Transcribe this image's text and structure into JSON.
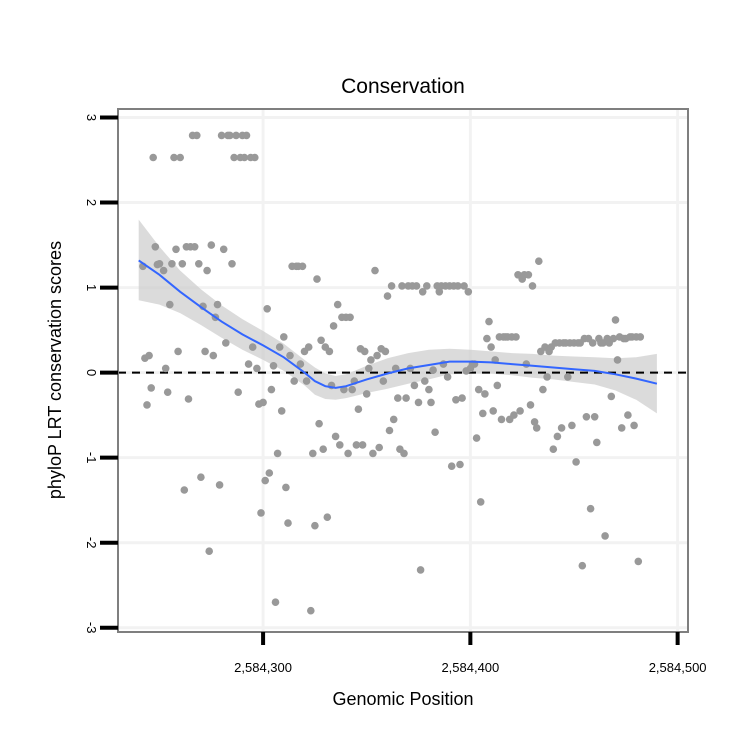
{
  "chart_data": {
    "type": "scatter",
    "title": "Conservation",
    "xlabel": "Genomic Position",
    "ylabel": "phyloP LRT conservation scores",
    "xlim": [
      2584230,
      2584505
    ],
    "ylim": [
      -3.05,
      3.1
    ],
    "x_ticks": [
      2584300,
      2584400,
      2584500
    ],
    "x_tick_labels": [
      "2,584,300",
      "2,584,400",
      "2,584,500"
    ],
    "y_ticks": [
      -3,
      -2,
      -1,
      0,
      1,
      2,
      3
    ],
    "y_tick_labels": [
      "-3",
      "-2",
      "-1",
      "0",
      "1",
      "2",
      "3"
    ],
    "grid": true,
    "reference_line": {
      "y": 0,
      "style": "dashed"
    },
    "colors": {
      "points": "#999999",
      "smooth": "#3366ff",
      "band": "#c8c8c8",
      "frame": "#7f7f7f",
      "grid": "#f2f2f2"
    },
    "series": [
      {
        "name": "scores",
        "kind": "points",
        "points": [
          [
            2584242,
            1.25
          ],
          [
            2584243,
            0.17
          ],
          [
            2584244,
            -0.38
          ],
          [
            2584245,
            0.2
          ],
          [
            2584246,
            -0.18
          ],
          [
            2584247,
            2.53
          ],
          [
            2584248,
            1.48
          ],
          [
            2584249,
            1.27
          ],
          [
            2584250,
            1.28
          ],
          [
            2584252,
            1.2
          ],
          [
            2584253,
            0.05
          ],
          [
            2584254,
            -0.23
          ],
          [
            2584255,
            0.8
          ],
          [
            2584256,
            1.28
          ],
          [
            2584257,
            2.53
          ],
          [
            2584258,
            1.45
          ],
          [
            2584259,
            0.25
          ],
          [
            2584260,
            2.53
          ],
          [
            2584261,
            1.28
          ],
          [
            2584262,
            -1.38
          ],
          [
            2584263,
            1.48
          ],
          [
            2584264,
            -0.31
          ],
          [
            2584265,
            1.48
          ],
          [
            2584266,
            2.79
          ],
          [
            2584267,
            1.48
          ],
          [
            2584268,
            2.79
          ],
          [
            2584269,
            1.28
          ],
          [
            2584270,
            -1.23
          ],
          [
            2584271,
            0.78
          ],
          [
            2584272,
            0.25
          ],
          [
            2584273,
            1.2
          ],
          [
            2584274,
            -2.1
          ],
          [
            2584275,
            1.5
          ],
          [
            2584276,
            0.2
          ],
          [
            2584277,
            0.65
          ],
          [
            2584278,
            0.8
          ],
          [
            2584279,
            -1.32
          ],
          [
            2584280,
            2.79
          ],
          [
            2584281,
            1.45
          ],
          [
            2584282,
            0.35
          ],
          [
            2584283,
            2.79
          ],
          [
            2584284,
            2.79
          ],
          [
            2584285,
            1.28
          ],
          [
            2584286,
            2.53
          ],
          [
            2584287,
            2.79
          ],
          [
            2584288,
            -0.23
          ],
          [
            2584289,
            2.53
          ],
          [
            2584290,
            2.79
          ],
          [
            2584291,
            2.53
          ],
          [
            2584292,
            2.79
          ],
          [
            2584293,
            0.1
          ],
          [
            2584294,
            2.53
          ],
          [
            2584295,
            0.3
          ],
          [
            2584296,
            2.53
          ],
          [
            2584297,
            0.05
          ],
          [
            2584298,
            -0.37
          ],
          [
            2584299,
            -1.65
          ],
          [
            2584300,
            -0.35
          ],
          [
            2584301,
            -1.27
          ],
          [
            2584302,
            0.75
          ],
          [
            2584303,
            -1.18
          ],
          [
            2584304,
            -0.2
          ],
          [
            2584305,
            0.08
          ],
          [
            2584306,
            -2.7
          ],
          [
            2584307,
            -0.95
          ],
          [
            2584308,
            0.3
          ],
          [
            2584309,
            -0.45
          ],
          [
            2584310,
            0.42
          ],
          [
            2584311,
            -1.35
          ],
          [
            2584312,
            -1.77
          ],
          [
            2584313,
            0.2
          ],
          [
            2584314,
            1.25
          ],
          [
            2584315,
            -0.1
          ],
          [
            2584316,
            1.25
          ],
          [
            2584317,
            1.25
          ],
          [
            2584318,
            0.1
          ],
          [
            2584319,
            1.25
          ],
          [
            2584320,
            0.25
          ],
          [
            2584321,
            -0.1
          ],
          [
            2584322,
            0.3
          ],
          [
            2584323,
            -2.8
          ],
          [
            2584324,
            -0.95
          ],
          [
            2584325,
            -1.8
          ],
          [
            2584326,
            1.1
          ],
          [
            2584327,
            -0.6
          ],
          [
            2584328,
            0.38
          ],
          [
            2584329,
            -0.9
          ],
          [
            2584330,
            0.3
          ],
          [
            2584331,
            -1.7
          ],
          [
            2584332,
            0.25
          ],
          [
            2584333,
            -0.15
          ],
          [
            2584334,
            0.55
          ],
          [
            2584335,
            -0.75
          ],
          [
            2584336,
            0.8
          ],
          [
            2584337,
            -0.85
          ],
          [
            2584338,
            0.65
          ],
          [
            2584339,
            -0.2
          ],
          [
            2584340,
            0.65
          ],
          [
            2584341,
            -0.95
          ],
          [
            2584342,
            0.65
          ],
          [
            2584343,
            -0.2
          ],
          [
            2584344,
            -0.1
          ],
          [
            2584345,
            -0.85
          ],
          [
            2584346,
            -0.43
          ],
          [
            2584347,
            0.28
          ],
          [
            2584348,
            -0.85
          ],
          [
            2584349,
            0.25
          ],
          [
            2584350,
            -0.25
          ],
          [
            2584351,
            0.05
          ],
          [
            2584352,
            0.15
          ],
          [
            2584353,
            -0.95
          ],
          [
            2584354,
            1.2
          ],
          [
            2584355,
            0.2
          ],
          [
            2584356,
            -0.88
          ],
          [
            2584357,
            0.28
          ],
          [
            2584358,
            -0.1
          ],
          [
            2584359,
            0.25
          ],
          [
            2584360,
            0.9
          ],
          [
            2584361,
            -0.68
          ],
          [
            2584362,
            1.02
          ],
          [
            2584363,
            -0.55
          ],
          [
            2584364,
            0.05
          ],
          [
            2584365,
            -0.3
          ],
          [
            2584366,
            -0.9
          ],
          [
            2584367,
            1.02
          ],
          [
            2584368,
            -0.95
          ],
          [
            2584369,
            -0.3
          ],
          [
            2584370,
            1.02
          ],
          [
            2584371,
            0.05
          ],
          [
            2584372,
            1.02
          ],
          [
            2584373,
            -0.15
          ],
          [
            2584374,
            1.02
          ],
          [
            2584375,
            -0.35
          ],
          [
            2584376,
            -2.32
          ],
          [
            2584377,
            0.95
          ],
          [
            2584378,
            -0.1
          ],
          [
            2584379,
            1.02
          ],
          [
            2584380,
            -0.2
          ],
          [
            2584381,
            -0.35
          ],
          [
            2584382,
            0.03
          ],
          [
            2584383,
            -0.7
          ],
          [
            2584384,
            1.02
          ],
          [
            2584385,
            0.95
          ],
          [
            2584386,
            1.02
          ],
          [
            2584387,
            0.1
          ],
          [
            2584388,
            1.02
          ],
          [
            2584389,
            -0.05
          ],
          [
            2584390,
            1.02
          ],
          [
            2584391,
            -1.1
          ],
          [
            2584392,
            1.02
          ],
          [
            2584393,
            -0.32
          ],
          [
            2584394,
            1.02
          ],
          [
            2584395,
            -1.08
          ],
          [
            2584396,
            -0.3
          ],
          [
            2584397,
            1.02
          ],
          [
            2584398,
            0.02
          ],
          [
            2584399,
            0.95
          ],
          [
            2584400,
            0.05
          ],
          [
            2584401,
            0.1
          ],
          [
            2584402,
            0.1
          ],
          [
            2584403,
            -0.77
          ],
          [
            2584404,
            -0.2
          ],
          [
            2584405,
            -1.52
          ],
          [
            2584406,
            -0.48
          ],
          [
            2584407,
            -0.25
          ],
          [
            2584408,
            0.4
          ],
          [
            2584409,
            0.6
          ],
          [
            2584410,
            0.3
          ],
          [
            2584411,
            -0.45
          ],
          [
            2584412,
            0.15
          ],
          [
            2584413,
            -0.15
          ],
          [
            2584414,
            0.42
          ],
          [
            2584415,
            -0.55
          ],
          [
            2584416,
            0.42
          ],
          [
            2584417,
            0.42
          ],
          [
            2584418,
            0.42
          ],
          [
            2584419,
            -0.55
          ],
          [
            2584420,
            0.42
          ],
          [
            2584421,
            -0.5
          ],
          [
            2584422,
            0.42
          ],
          [
            2584423,
            1.15
          ],
          [
            2584424,
            -0.45
          ],
          [
            2584425,
            1.1
          ],
          [
            2584426,
            1.15
          ],
          [
            2584427,
            0.1
          ],
          [
            2584428,
            1.15
          ],
          [
            2584429,
            -0.38
          ],
          [
            2584430,
            1.02
          ],
          [
            2584431,
            -0.58
          ],
          [
            2584432,
            -0.65
          ],
          [
            2584433,
            1.31
          ],
          [
            2584434,
            0.25
          ],
          [
            2584435,
            -0.2
          ],
          [
            2584436,
            0.3
          ],
          [
            2584437,
            -0.05
          ],
          [
            2584438,
            0.25
          ],
          [
            2584439,
            0.3
          ],
          [
            2584440,
            -0.9
          ],
          [
            2584441,
            0.35
          ],
          [
            2584442,
            -0.75
          ],
          [
            2584443,
            0.35
          ],
          [
            2584444,
            -0.65
          ],
          [
            2584445,
            0.35
          ],
          [
            2584446,
            0.35
          ],
          [
            2584447,
            -0.05
          ],
          [
            2584448,
            0.35
          ],
          [
            2584449,
            -0.62
          ],
          [
            2584450,
            0.35
          ],
          [
            2584451,
            -1.05
          ],
          [
            2584452,
            0.35
          ],
          [
            2584453,
            0.35
          ],
          [
            2584454,
            -2.27
          ],
          [
            2584455,
            0.4
          ],
          [
            2584456,
            -0.52
          ],
          [
            2584457,
            0.4
          ],
          [
            2584458,
            -1.6
          ],
          [
            2584459,
            0.35
          ],
          [
            2584460,
            -0.52
          ],
          [
            2584461,
            -0.82
          ],
          [
            2584462,
            0.4
          ],
          [
            2584463,
            0.35
          ],
          [
            2584464,
            0.35
          ],
          [
            2584465,
            -1.92
          ],
          [
            2584466,
            0.4
          ],
          [
            2584467,
            0.35
          ],
          [
            2584468,
            -0.28
          ],
          [
            2584469,
            0.4
          ],
          [
            2584470,
            0.62
          ],
          [
            2584471,
            0.15
          ],
          [
            2584472,
            0.42
          ],
          [
            2584473,
            -0.65
          ],
          [
            2584474,
            0.4
          ],
          [
            2584475,
            0.4
          ],
          [
            2584476,
            -0.5
          ],
          [
            2584477,
            0.42
          ],
          [
            2584478,
            0.42
          ],
          [
            2584479,
            -0.62
          ],
          [
            2584480,
            0.42
          ],
          [
            2584481,
            -2.22
          ],
          [
            2584482,
            0.42
          ]
        ]
      },
      {
        "name": "smooth fit",
        "kind": "line",
        "x": [
          2584240,
          2584250,
          2584260,
          2584270,
          2584280,
          2584290,
          2584300,
          2584310,
          2584320,
          2584325,
          2584330,
          2584335,
          2584340,
          2584345,
          2584350,
          2584360,
          2584370,
          2584380,
          2584390,
          2584400,
          2584410,
          2584420,
          2584430,
          2584440,
          2584450,
          2584460,
          2584470,
          2584480,
          2584490
        ],
        "y": [
          1.32,
          1.15,
          0.95,
          0.77,
          0.6,
          0.45,
          0.32,
          0.18,
          0.0,
          -0.1,
          -0.16,
          -0.18,
          -0.16,
          -0.12,
          -0.08,
          -0.01,
          0.05,
          0.09,
          0.13,
          0.13,
          0.12,
          0.1,
          0.08,
          0.06,
          0.04,
          0.02,
          -0.02,
          -0.07,
          -0.13
        ],
        "band_upper": [
          1.8,
          1.48,
          1.2,
          0.98,
          0.79,
          0.63,
          0.49,
          0.34,
          0.15,
          0.06,
          -0.01,
          -0.04,
          -0.02,
          0.03,
          0.08,
          0.17,
          0.23,
          0.27,
          0.28,
          0.27,
          0.25,
          0.23,
          0.22,
          0.2,
          0.19,
          0.18,
          0.17,
          0.18,
          0.22
        ],
        "band_lower": [
          0.85,
          0.8,
          0.7,
          0.56,
          0.41,
          0.27,
          0.15,
          0.02,
          -0.15,
          -0.26,
          -0.31,
          -0.32,
          -0.3,
          -0.27,
          -0.24,
          -0.19,
          -0.13,
          -0.08,
          -0.02,
          -0.01,
          -0.01,
          -0.03,
          -0.06,
          -0.08,
          -0.11,
          -0.14,
          -0.21,
          -0.32,
          -0.48
        ]
      }
    ]
  }
}
